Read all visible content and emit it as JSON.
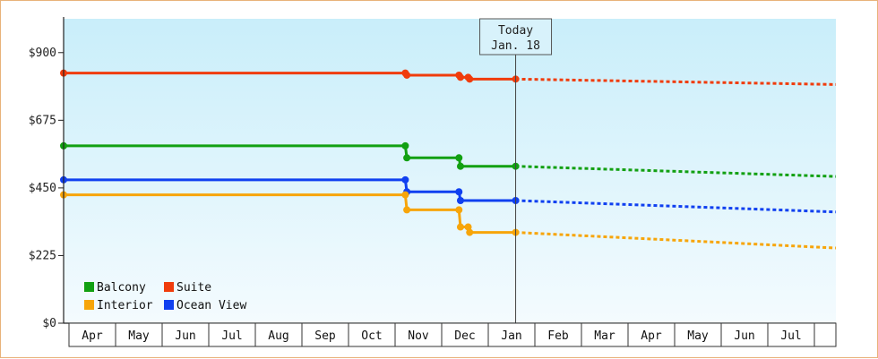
{
  "chart_data": {
    "type": "line",
    "step": true,
    "x_axis": {
      "months": [
        "Apr",
        "May",
        "Jun",
        "Jul",
        "Aug",
        "Sep",
        "Oct",
        "Nov",
        "Dec",
        "Jan",
        "Feb",
        "Mar",
        "Apr",
        "May",
        "Jun",
        "Jul"
      ],
      "start": "2014-03-29",
      "end": "2015-08-15"
    },
    "y_axis": {
      "ylim": [
        0,
        1012.5
      ],
      "ticks": [
        0,
        225,
        450,
        675,
        900
      ],
      "tick_labels": [
        "$0",
        "$225",
        "$450",
        "$675",
        "$900"
      ]
    },
    "today_marker": {
      "line1": "Today",
      "line2": "Jan. 18",
      "date": "2015-01-18"
    },
    "legend": {
      "position": "bottom-left",
      "entries": [
        "Balcony",
        "Suite",
        "Interior",
        "Ocean View"
      ]
    },
    "series": [
      {
        "name": "Suite",
        "color": "#f03c0c",
        "history": [
          [
            "2014-03-29",
            832
          ],
          [
            "2014-11-07",
            832
          ],
          [
            "2014-11-08",
            825
          ],
          [
            "2014-12-12",
            825
          ],
          [
            "2014-12-13",
            818
          ],
          [
            "2014-12-18",
            818
          ],
          [
            "2014-12-19",
            812
          ],
          [
            "2015-01-18",
            812
          ]
        ],
        "forecast": [
          [
            "2015-01-18",
            812
          ],
          [
            "2015-08-15",
            794
          ]
        ]
      },
      {
        "name": "Balcony",
        "color": "#12a012",
        "history": [
          [
            "2014-03-29",
            590
          ],
          [
            "2014-11-07",
            590
          ],
          [
            "2014-11-08",
            550
          ],
          [
            "2014-12-12",
            550
          ],
          [
            "2014-12-13",
            522
          ],
          [
            "2015-01-18",
            522
          ]
        ],
        "forecast": [
          [
            "2015-01-18",
            522
          ],
          [
            "2015-08-15",
            488
          ]
        ]
      },
      {
        "name": "Ocean View",
        "color": "#1040f0",
        "history": [
          [
            "2014-03-29",
            477
          ],
          [
            "2014-11-07",
            477
          ],
          [
            "2014-11-08",
            437
          ],
          [
            "2014-12-12",
            437
          ],
          [
            "2014-12-13",
            408
          ],
          [
            "2015-01-18",
            408
          ]
        ],
        "forecast": [
          [
            "2015-01-18",
            408
          ],
          [
            "2015-08-15",
            370
          ]
        ]
      },
      {
        "name": "Interior",
        "color": "#f7a50a",
        "history": [
          [
            "2014-03-29",
            427
          ],
          [
            "2014-11-07",
            427
          ],
          [
            "2014-11-08",
            377
          ],
          [
            "2014-12-12",
            377
          ],
          [
            "2014-12-13",
            320
          ],
          [
            "2014-12-18",
            320
          ],
          [
            "2014-12-19",
            302
          ],
          [
            "2015-01-18",
            302
          ]
        ],
        "forecast": [
          [
            "2015-01-18",
            302
          ],
          [
            "2015-08-15",
            250
          ]
        ]
      }
    ]
  }
}
